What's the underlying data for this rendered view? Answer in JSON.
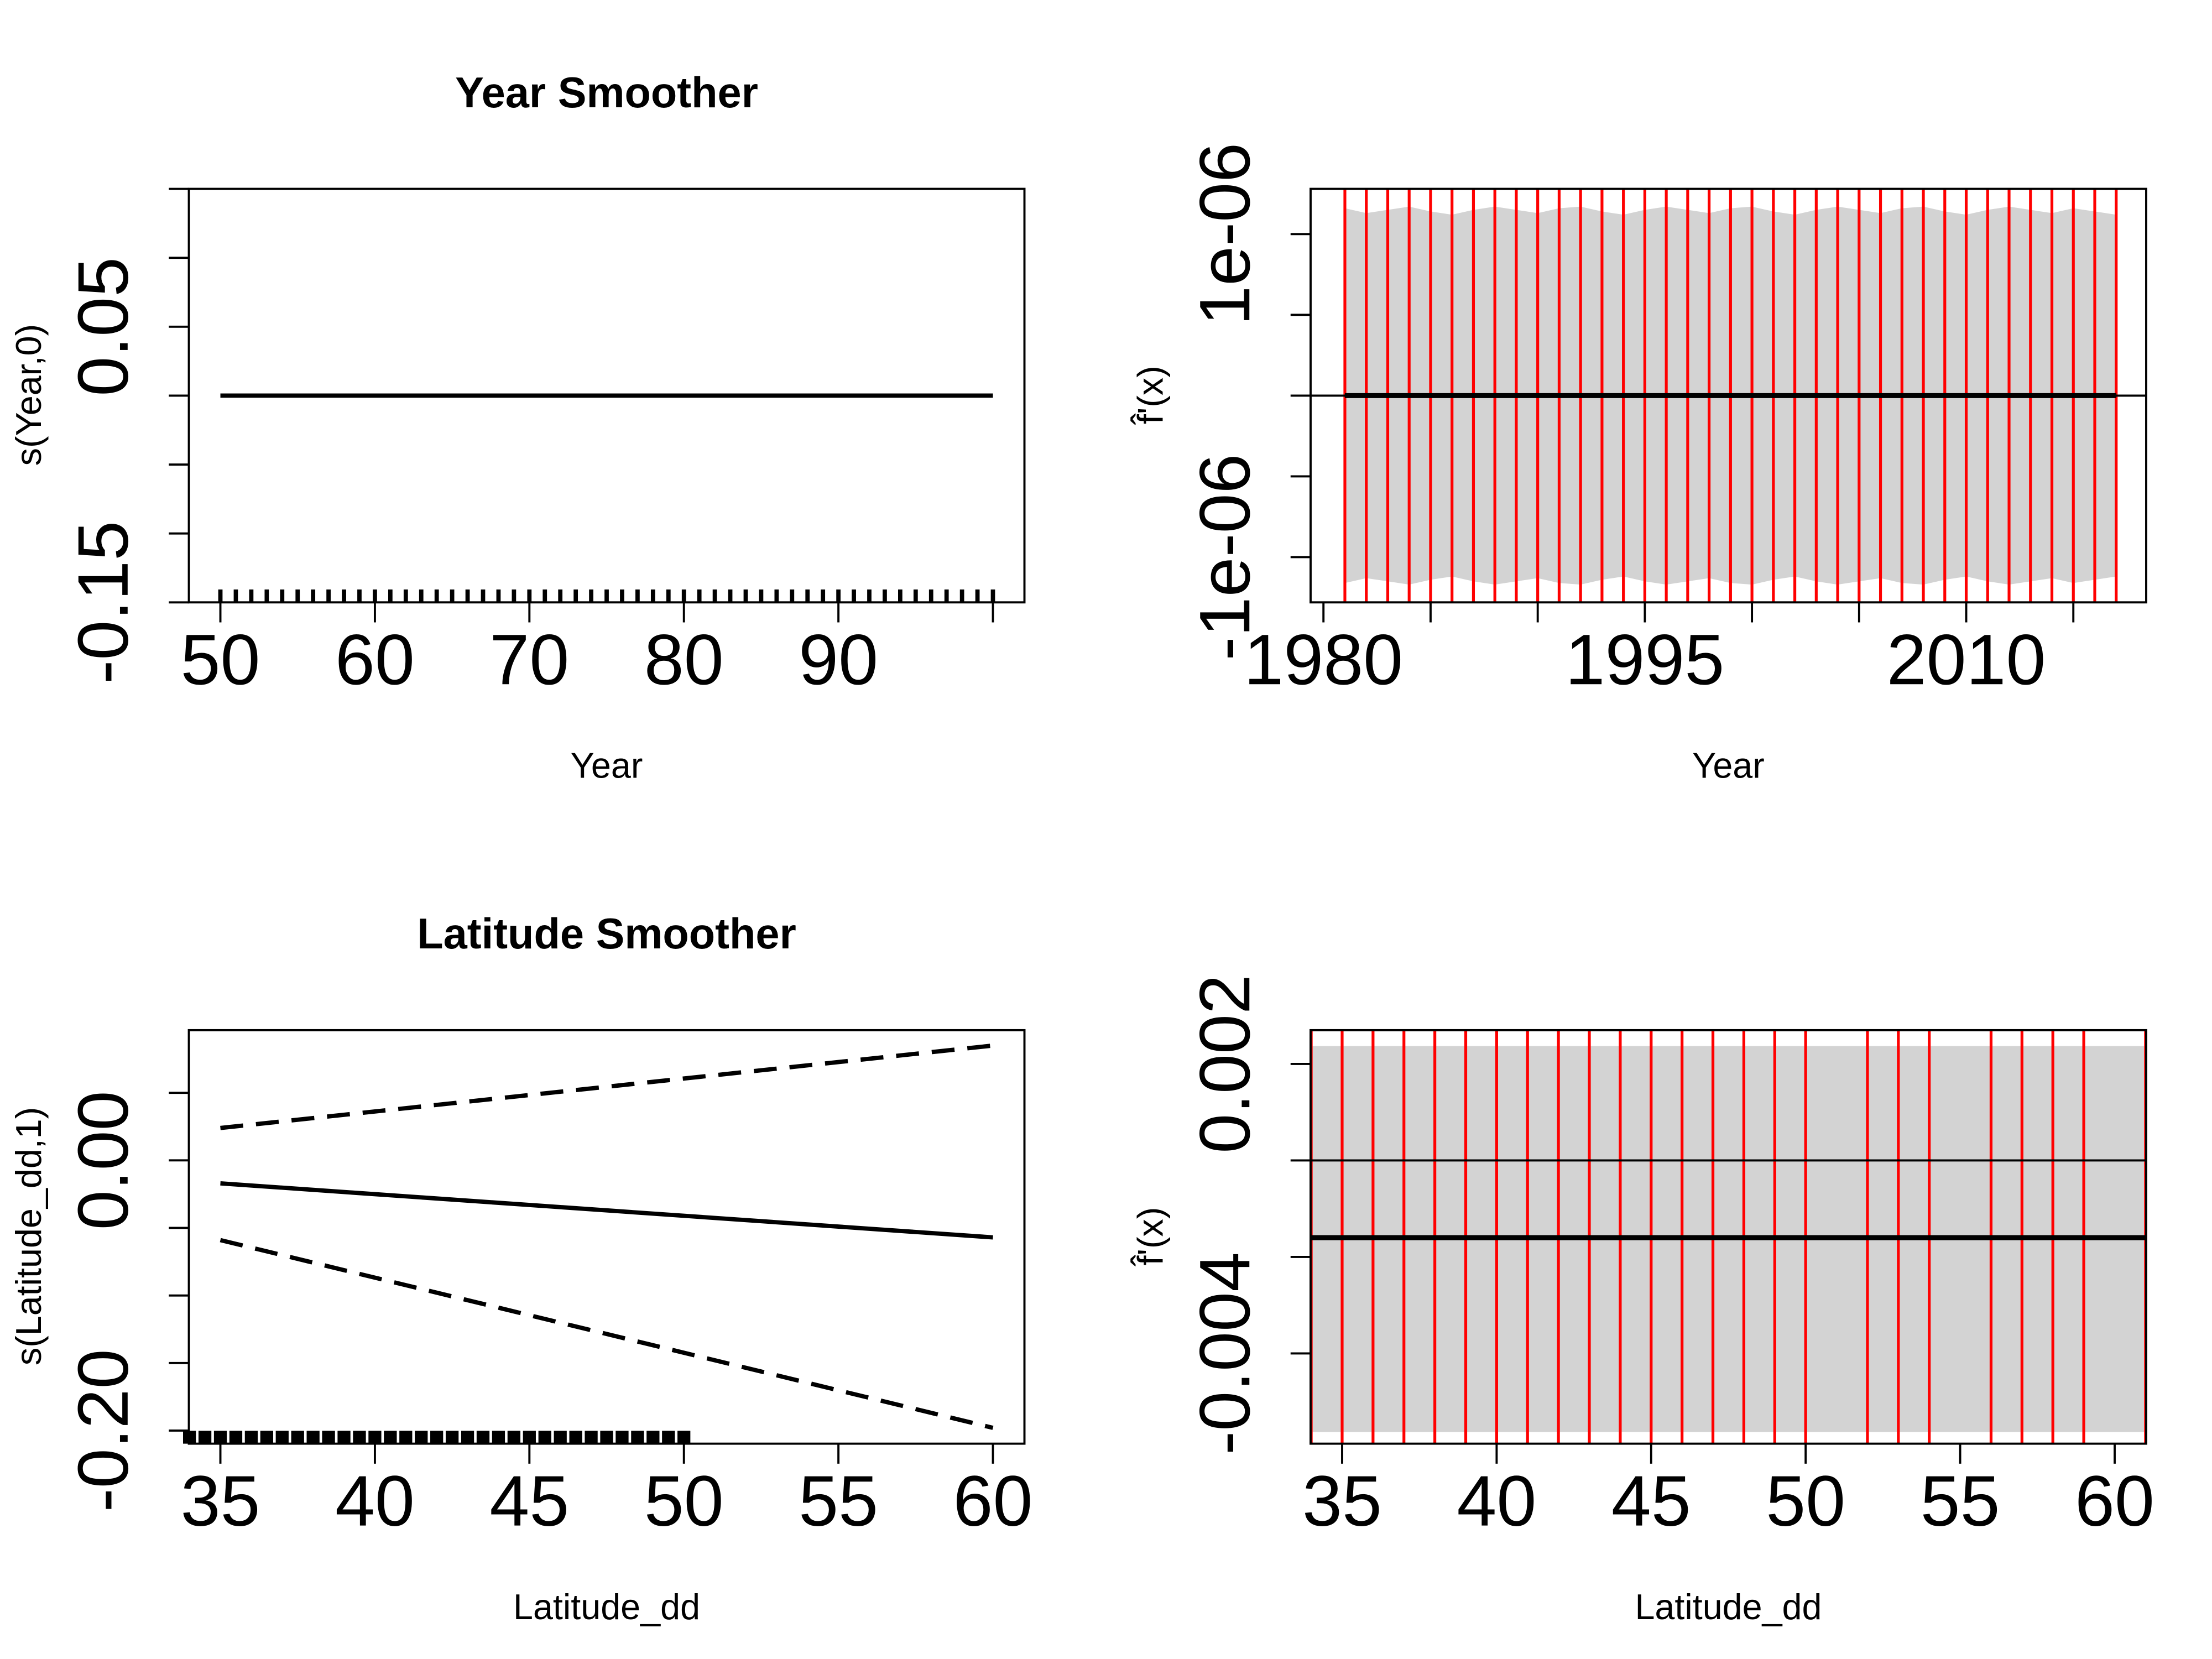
{
  "chart_data": [
    {
      "type": "line",
      "title": "Year Smoother",
      "xlabel": "Year",
      "ylabel": "s(Year,0)",
      "xlim": [
        47.96,
        102.04
      ],
      "ylim": [
        -0.15,
        0.15
      ],
      "xticks": [
        50,
        60,
        70,
        80,
        90
      ],
      "xticks_minor": [
        100
      ],
      "yticks": [
        -0.15,
        0.05
      ],
      "yticks_minor": [
        -0.1,
        -0.05,
        0,
        0.1,
        0.15
      ],
      "x": [
        50,
        100
      ],
      "series": [
        {
          "color": "#000000",
          "style": "solid",
          "values": [
            0,
            0
          ]
        }
      ],
      "rug": [
        50,
        51,
        52,
        53,
        54,
        55,
        56,
        57,
        58,
        59,
        60,
        61,
        62,
        63,
        64,
        65,
        66,
        67,
        68,
        69,
        70,
        71,
        72,
        73,
        74,
        75,
        76,
        77,
        78,
        79,
        80,
        81,
        82,
        83,
        84,
        85,
        86,
        87,
        88,
        89,
        90,
        91,
        92,
        93,
        94,
        95,
        96,
        97,
        98,
        99,
        100
      ]
    },
    {
      "type": "line",
      "xlabel": "Year",
      "ylabel": "f̂'(x)",
      "xlim": [
        1979.4,
        2018.4
      ],
      "ylim": [
        -1.28e-06,
        1.28e-06
      ],
      "xticks": [
        1980,
        1995,
        2010
      ],
      "xticks_minor": [
        1985,
        1990,
        2000,
        2005,
        2015
      ],
      "yticks": [
        {
          "value": -1e-06,
          "label": "-1e-06"
        },
        {
          "value": 1e-06,
          "label": "1e-06"
        }
      ],
      "yticks_minor": [
        -5e-07,
        0,
        5e-07
      ],
      "x": [
        1981,
        1982,
        1983,
        1984,
        1985,
        1986,
        1987,
        1988,
        1989,
        1990,
        1991,
        1992,
        1993,
        1994,
        1995,
        1996,
        1997,
        1998,
        1999,
        2000,
        2001,
        2002,
        2003,
        2004,
        2005,
        2006,
        2007,
        2008,
        2009,
        2010,
        2011,
        2012,
        2013,
        2014,
        2015,
        2016,
        2017
      ],
      "series": [
        {
          "color": "#000000",
          "style": "thick",
          "values": [
            0,
            0,
            0,
            0,
            0,
            0,
            0,
            0,
            0,
            0,
            0,
            0,
            0,
            0,
            0,
            0,
            0,
            0,
            0,
            0,
            0,
            0,
            0,
            0,
            0,
            0,
            0,
            0,
            0,
            0,
            0,
            0,
            0,
            0,
            0,
            0,
            0
          ]
        }
      ],
      "band": {
        "color": "#d3d3d3",
        "upper": [
          1.16e-06,
          1.13e-06,
          1.15e-06,
          1.17e-06,
          1.14e-06,
          1.12e-06,
          1.15e-06,
          1.17e-06,
          1.15e-06,
          1.13e-06,
          1.16e-06,
          1.17e-06,
          1.14e-06,
          1.12e-06,
          1.15e-06,
          1.17e-06,
          1.15e-06,
          1.13e-06,
          1.16e-06,
          1.17e-06,
          1.14e-06,
          1.12e-06,
          1.15e-06,
          1.17e-06,
          1.15e-06,
          1.13e-06,
          1.16e-06,
          1.17e-06,
          1.14e-06,
          1.12e-06,
          1.15e-06,
          1.17e-06,
          1.15e-06,
          1.13e-06,
          1.16e-06,
          1.14e-06,
          1.12e-06
        ],
        "lower": [
          -1.16e-06,
          -1.13e-06,
          -1.15e-06,
          -1.17e-06,
          -1.14e-06,
          -1.12e-06,
          -1.15e-06,
          -1.17e-06,
          -1.15e-06,
          -1.13e-06,
          -1.16e-06,
          -1.17e-06,
          -1.14e-06,
          -1.12e-06,
          -1.15e-06,
          -1.17e-06,
          -1.15e-06,
          -1.13e-06,
          -1.16e-06,
          -1.17e-06,
          -1.14e-06,
          -1.12e-06,
          -1.15e-06,
          -1.17e-06,
          -1.15e-06,
          -1.13e-06,
          -1.16e-06,
          -1.17e-06,
          -1.14e-06,
          -1.12e-06,
          -1.15e-06,
          -1.17e-06,
          -1.15e-06,
          -1.13e-06,
          -1.16e-06,
          -1.14e-06,
          -1.12e-06
        ]
      },
      "hline": 0,
      "vline_color": "#ff0000",
      "vlines": [
        1981,
        1982,
        1983,
        1984,
        1985,
        1986,
        1987,
        1988,
        1989,
        1990,
        1991,
        1992,
        1993,
        1994,
        1995,
        1996,
        1997,
        1998,
        1999,
        2000,
        2001,
        2002,
        2003,
        2004,
        2005,
        2006,
        2007,
        2008,
        2009,
        2010,
        2011,
        2012,
        2013,
        2014,
        2015,
        2016,
        2017
      ]
    },
    {
      "type": "line",
      "title": "Latitude Smoother",
      "xlabel": "Latitude_dd",
      "ylabel": "s(Latitude_dd,1)",
      "xlim": [
        33.98,
        61.02
      ],
      "ylim": [
        -0.2097,
        0.0964
      ],
      "xticks": [
        35,
        40,
        45,
        50,
        55,
        60
      ],
      "yticks": [
        {
          "value": -0.2,
          "label": "-0.20"
        },
        {
          "value": 0,
          "label": "0.00"
        }
      ],
      "yticks_minor": [
        -0.15,
        -0.1,
        -0.05,
        0.05
      ],
      "x": [
        35,
        60
      ],
      "series": [
        {
          "color": "#000000",
          "style": "solid",
          "values": [
            -0.017,
            -0.057
          ]
        },
        {
          "color": "#000000",
          "style": "dashed",
          "values": [
            0.024,
            0.085
          ]
        },
        {
          "color": "#000000",
          "style": "dashed",
          "values": [
            -0.059,
            -0.198
          ]
        }
      ],
      "rug": [
        34,
        34.5,
        35,
        35.5,
        36,
        36.5,
        37,
        37.5,
        38,
        38.5,
        39,
        39.5,
        40,
        40.5,
        41,
        41.5,
        42,
        42.5,
        43,
        43.5,
        44,
        44.5,
        45,
        45.5,
        46,
        46.5,
        47,
        47.5,
        48,
        48.5,
        49,
        49.5,
        50
      ]
    },
    {
      "type": "line",
      "xlabel": "Latitude_dd",
      "ylabel": "f̂'(x)",
      "xlim": [
        33.98,
        61.02
      ],
      "ylim": [
        -0.00587,
        0.0027
      ],
      "xticks": [
        35,
        40,
        45,
        50,
        55,
        60
      ],
      "yticks": [
        -0.004,
        0.002
      ],
      "yticks_minor": [
        -0.002,
        0
      ],
      "x": [
        34,
        61
      ],
      "series": [
        {
          "color": "#000000",
          "style": "thick",
          "values": [
            -0.0016,
            -0.0016
          ]
        }
      ],
      "band": {
        "color": "#d3d3d3",
        "upper": [
          0.00237,
          0.00237
        ],
        "lower": [
          -0.00563,
          -0.00563
        ]
      },
      "hline": 0,
      "vline_color": "#ff0000",
      "vlines": [
        34,
        35,
        36,
        37,
        38,
        39,
        40,
        41,
        42,
        43,
        44,
        45,
        46,
        47,
        48,
        49,
        50,
        52,
        53,
        54,
        56,
        57,
        58,
        59,
        61
      ]
    }
  ]
}
